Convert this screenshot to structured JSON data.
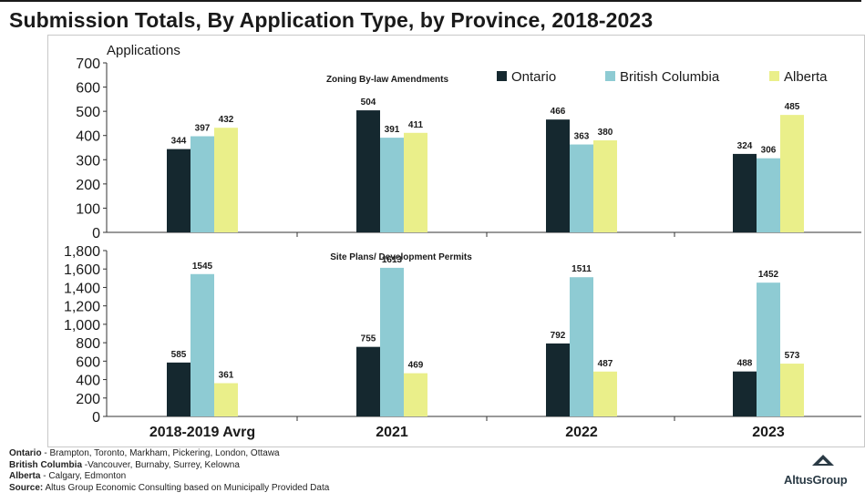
{
  "title": "Submission Totals, By Application Type, by Province, 2018-2023",
  "colors": {
    "ontario": "#15282f",
    "british_columbia": "#8ecbd3",
    "alberta": "#eaef8a"
  },
  "chart_data": [
    {
      "type": "bar",
      "title": "Zoning By-law Amendments",
      "ylabel": "Applications",
      "categories": [
        "2018-2019 Avrg",
        "2021",
        "2022",
        "2023"
      ],
      "ylim": [
        0,
        700
      ],
      "yticks": [
        "0",
        "100",
        "200",
        "300",
        "400",
        "500",
        "600",
        "700"
      ],
      "series": [
        {
          "name": "Ontario",
          "color": "#15282f",
          "values": [
            344,
            504,
            466,
            324
          ]
        },
        {
          "name": "British Columbia",
          "color": "#8ecbd3",
          "values": [
            397,
            391,
            363,
            306
          ]
        },
        {
          "name": "Alberta",
          "color": "#eaef8a",
          "values": [
            432,
            411,
            380,
            485
          ]
        }
      ],
      "legend": "top-right",
      "grid": false
    },
    {
      "type": "bar",
      "title": "Site Plans/ Development Permits",
      "categories": [
        "2018-2019 Avrg",
        "2021",
        "2022",
        "2023"
      ],
      "ylim": [
        0,
        1800
      ],
      "yticks": [
        "0",
        "200",
        "400",
        "600",
        "800",
        "1,000",
        "1,200",
        "1,400",
        "1,600",
        "1,800"
      ],
      "series": [
        {
          "name": "Ontario",
          "color": "#15282f",
          "values": [
            585,
            755,
            792,
            488
          ]
        },
        {
          "name": "British Columbia",
          "color": "#8ecbd3",
          "values": [
            1545,
            1613,
            1511,
            1452
          ]
        },
        {
          "name": "Alberta",
          "color": "#eaef8a",
          "values": [
            361,
            469,
            487,
            573
          ]
        }
      ],
      "grid": false
    }
  ],
  "notes": [
    {
      "label": "Ontario",
      "text": " - Brampton, Toronto, Markham, Pickering, London, Ottawa"
    },
    {
      "label": "British Columbia",
      "text": " -Vancouver, Burnaby, Surrey, Kelowna"
    },
    {
      "label": "Alberta",
      "text": " - Calgary, Edmonton"
    },
    {
      "label": "Source:",
      "text": " Altus Group Economic Consulting based on Municipally Provided Data"
    }
  ],
  "logo": {
    "text": "AltusGroup",
    "icon": "altus-triangle-icon"
  }
}
